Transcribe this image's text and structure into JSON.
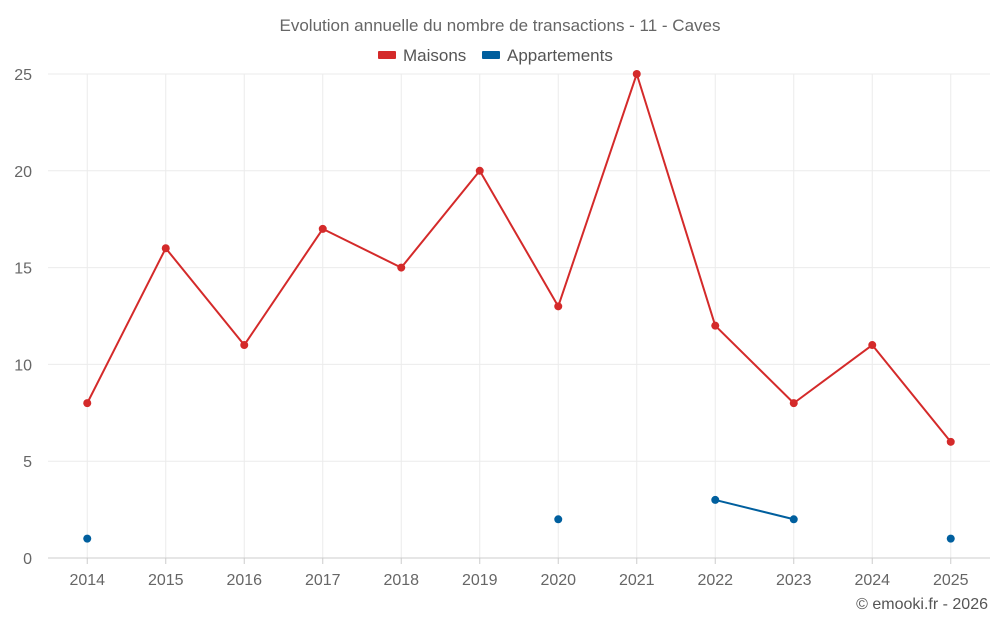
{
  "chart_data": {
    "type": "line",
    "title": "Evolution annuelle du nombre de transactions - 11 - Caves",
    "categories": [
      "2014",
      "2015",
      "2016",
      "2017",
      "2018",
      "2019",
      "2020",
      "2021",
      "2022",
      "2023",
      "2024",
      "2025"
    ],
    "ylim": [
      0,
      25
    ],
    "yticks": [
      0,
      5,
      10,
      15,
      20,
      25
    ],
    "grid": true,
    "legend_position": "top-center",
    "series": [
      {
        "name": "Maisons",
        "color": "#d42a2a",
        "values": [
          8,
          16,
          11,
          17,
          15,
          20,
          13,
          25,
          12,
          8,
          11,
          6
        ]
      },
      {
        "name": "Appartements",
        "color": "#005f9e",
        "values": [
          1,
          null,
          null,
          null,
          null,
          null,
          2,
          null,
          3,
          2,
          null,
          1
        ]
      }
    ]
  },
  "credit": "© emooki.fr - 2026"
}
